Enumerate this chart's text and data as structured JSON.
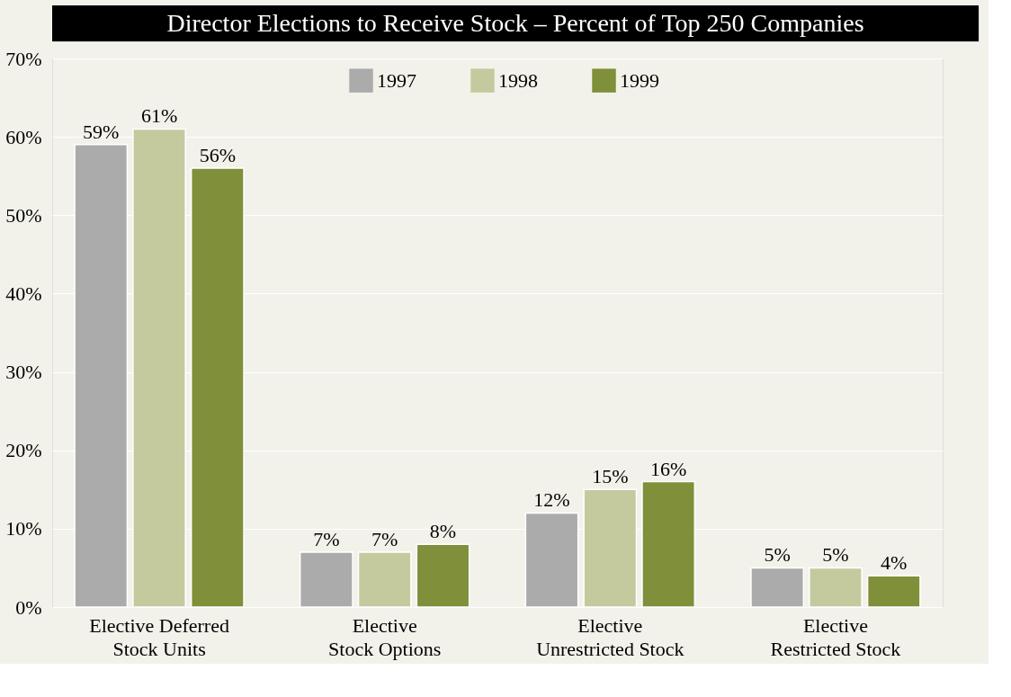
{
  "chart_data": {
    "type": "bar",
    "title": "Director Elections to Receive Stock – Percent of Top 250 Companies",
    "categories": [
      "Elective Deferred\nStock Units",
      "Elective\nStock Options",
      "Elective\nUnrestricted Stock",
      "Elective\nRestricted Stock"
    ],
    "series": [
      {
        "name": "1997",
        "color": "#ababab",
        "values": [
          59,
          7,
          12,
          5
        ],
        "value_labels": [
          "59%",
          "7%",
          "12%",
          "5%"
        ]
      },
      {
        "name": "1998",
        "color": "#c5ca9e",
        "values": [
          61,
          7,
          15,
          5
        ],
        "value_labels": [
          "61%",
          "7%",
          "15%",
          "5%"
        ]
      },
      {
        "name": "1999",
        "color": "#7f8f3a",
        "values": [
          56,
          8,
          16,
          4
        ],
        "value_labels": [
          "56%",
          "8%",
          "16%",
          "4%"
        ]
      }
    ],
    "ylim": [
      0,
      70
    ],
    "yticks": [
      {
        "value": 0,
        "label": "0%"
      },
      {
        "value": 10,
        "label": "10%"
      },
      {
        "value": 20,
        "label": "20%"
      },
      {
        "value": 30,
        "label": "30%"
      },
      {
        "value": 40,
        "label": "40%"
      },
      {
        "value": 50,
        "label": "50%"
      },
      {
        "value": 60,
        "label": "60%"
      },
      {
        "value": 70,
        "label": "70%"
      }
    ],
    "grid": "y",
    "legend": "top"
  }
}
